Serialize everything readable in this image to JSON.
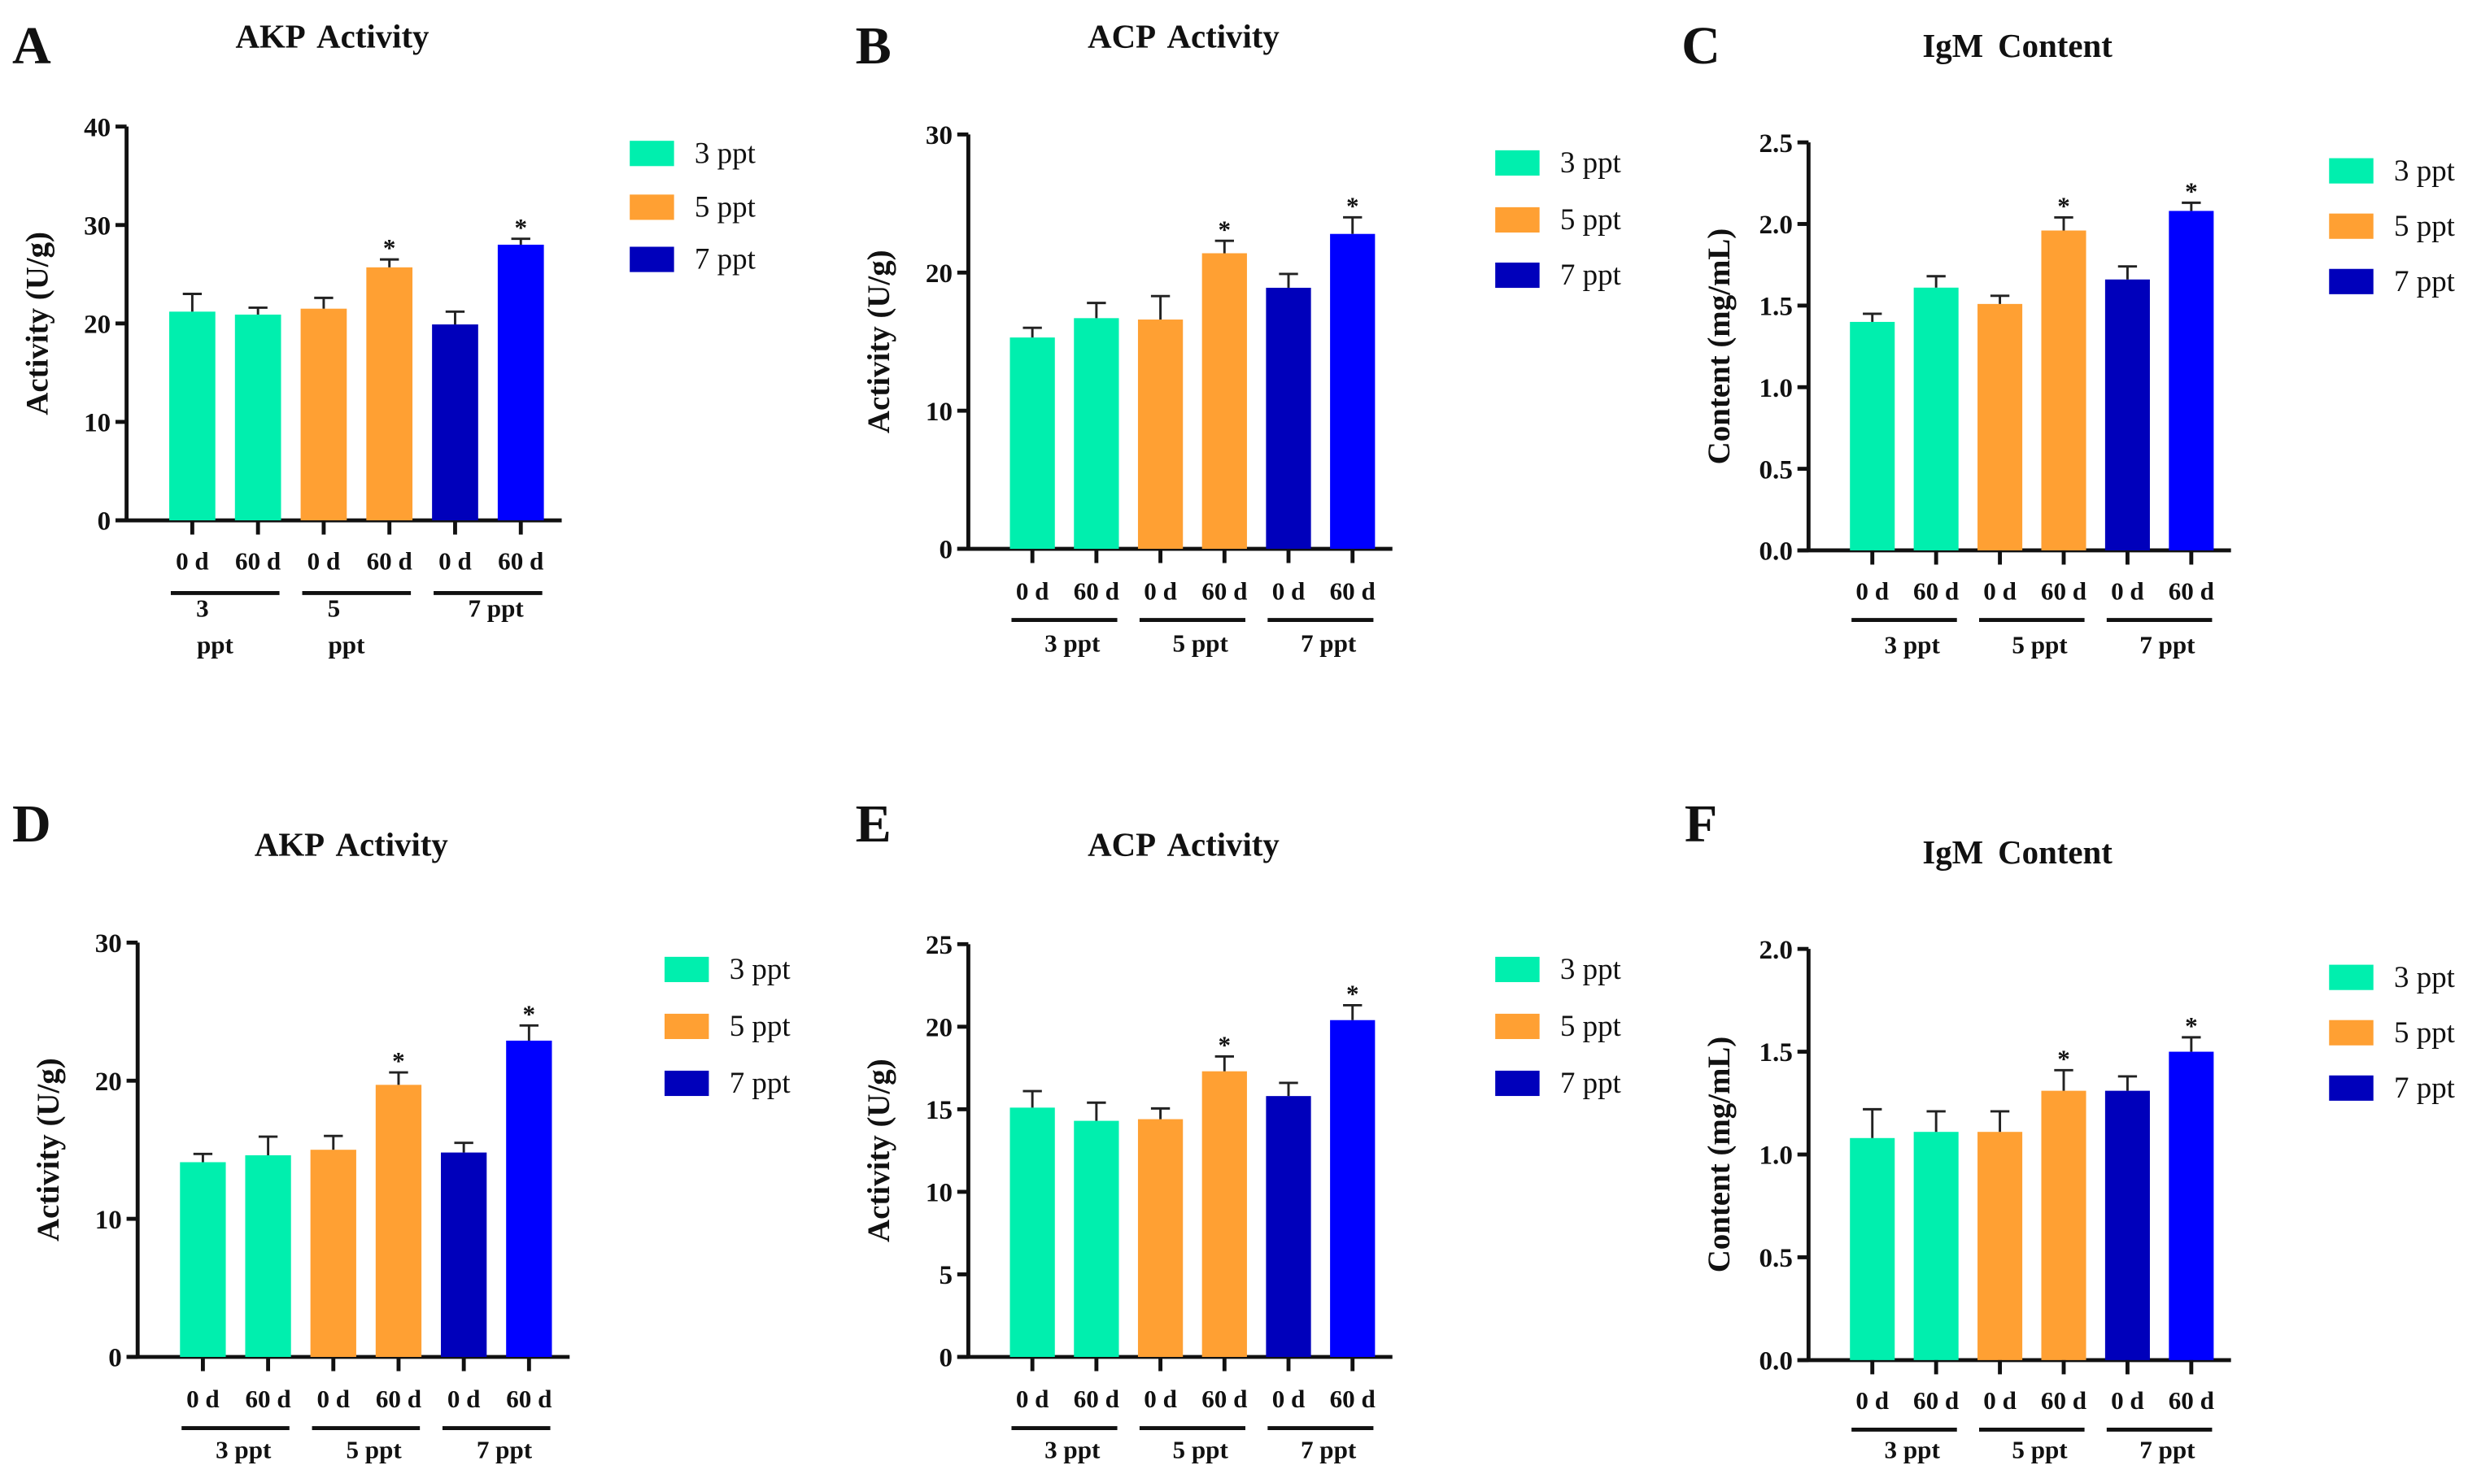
{
  "colors": {
    "teal": "#00EFAE",
    "orange": "#FFA033",
    "dark_blue": "#0000BB",
    "blue": "#0000FF",
    "axis": "#111111"
  },
  "legend": [
    {
      "label": "3 ppt",
      "color": "#00EFAE"
    },
    {
      "label": "5 ppt",
      "color": "#FFA033"
    },
    {
      "label": "7 ppt",
      "color": "#0000BB"
    }
  ],
  "chart_data": [
    {
      "panel": "A",
      "type": "bar",
      "title": "AKP Activity",
      "ylabel": "Activity (U/g)",
      "ylim": [
        0,
        40
      ],
      "yticks": [
        "0",
        "10",
        "20",
        "30",
        "40"
      ],
      "ytick_values": [
        0,
        10,
        20,
        30,
        40
      ],
      "categories": [
        "0 d",
        "60 d",
        "0 d",
        "60 d",
        "0 d",
        "60 d"
      ],
      "groups": [
        {
          "lines": [
            "3",
            "ppt"
          ]
        },
        {
          "lines": [
            "5",
            "ppt"
          ]
        },
        {
          "lines": [
            "7 ppt"
          ]
        }
      ],
      "values": [
        21.2,
        20.9,
        21.5,
        25.7,
        19.9,
        28.0
      ],
      "errors": [
        1.8,
        0.7,
        1.1,
        0.8,
        1.3,
        0.6
      ],
      "significance": [
        "",
        "",
        "",
        "*",
        "",
        "*"
      ]
    },
    {
      "panel": "B",
      "type": "bar",
      "title": "ACP Activity",
      "ylabel": "Activity (U/g)",
      "ylim": [
        0,
        30
      ],
      "yticks": [
        "0",
        "10",
        "20",
        "30"
      ],
      "ytick_values": [
        0,
        10,
        20,
        30
      ],
      "categories": [
        "0 d",
        "60 d",
        "0 d",
        "60 d",
        "0 d",
        "60 d"
      ],
      "groups": [
        {
          "lines": [
            "3 ppt"
          ]
        },
        {
          "lines": [
            "5 ppt"
          ]
        },
        {
          "lines": [
            "7 ppt"
          ]
        }
      ],
      "values": [
        15.3,
        16.7,
        16.6,
        21.4,
        18.9,
        22.8
      ],
      "errors": [
        0.7,
        1.1,
        1.7,
        0.9,
        1.0,
        1.2
      ],
      "significance": [
        "",
        "",
        "",
        "*",
        "",
        "*"
      ]
    },
    {
      "panel": "C",
      "type": "bar",
      "title": "IgM Content",
      "ylabel": "Content (mg/mL)",
      "ylim": [
        0,
        2.5
      ],
      "yticks": [
        "0.0",
        "0.5",
        "1.0",
        "1.5",
        "2.0",
        "2.5"
      ],
      "ytick_values": [
        0,
        0.5,
        1,
        1.5,
        2,
        2.5
      ],
      "categories": [
        "0 d",
        "60 d",
        "0 d",
        "60 d",
        "0 d",
        "60 d"
      ],
      "groups": [
        {
          "lines": [
            "3 ppt"
          ]
        },
        {
          "lines": [
            "5 ppt"
          ]
        },
        {
          "lines": [
            "7 ppt"
          ]
        }
      ],
      "values": [
        1.4,
        1.61,
        1.51,
        1.96,
        1.66,
        2.08
      ],
      "errors": [
        0.05,
        0.07,
        0.05,
        0.08,
        0.08,
        0.05
      ],
      "significance": [
        "",
        "",
        "",
        "*",
        "",
        "*"
      ]
    },
    {
      "panel": "D",
      "type": "bar",
      "title": "AKP Activity",
      "ylabel": "Activity (U/g)",
      "ylim": [
        0,
        30
      ],
      "yticks": [
        "0",
        "10",
        "20",
        "30"
      ],
      "ytick_values": [
        0,
        10,
        20,
        30
      ],
      "categories": [
        "0 d",
        "60 d",
        "0 d",
        "60 d",
        "0 d",
        "60 d"
      ],
      "groups": [
        {
          "lines": [
            "3 ppt"
          ]
        },
        {
          "lines": [
            "5 ppt"
          ]
        },
        {
          "lines": [
            "7 ppt"
          ]
        }
      ],
      "values": [
        14.1,
        14.6,
        15.0,
        19.7,
        14.8,
        22.9
      ],
      "errors": [
        0.6,
        1.35,
        1.0,
        0.9,
        0.7,
        1.1
      ],
      "significance": [
        "",
        "",
        "",
        "*",
        "",
        "*"
      ]
    },
    {
      "panel": "E",
      "type": "bar",
      "title": "ACP Activity",
      "ylabel": "Activity (U/g)",
      "ylim": [
        0,
        25
      ],
      "yticks": [
        "0",
        "5",
        "10",
        "15",
        "20",
        "25"
      ],
      "ytick_values": [
        0,
        5,
        10,
        15,
        20,
        25
      ],
      "categories": [
        "0 d",
        "60 d",
        "0 d",
        "60 d",
        "0 d",
        "60 d"
      ],
      "groups": [
        {
          "lines": [
            "3 ppt"
          ]
        },
        {
          "lines": [
            "5 ppt"
          ]
        },
        {
          "lines": [
            "7 ppt"
          ]
        }
      ],
      "values": [
        15.1,
        14.3,
        14.4,
        17.3,
        15.8,
        20.4
      ],
      "errors": [
        1.0,
        1.1,
        0.65,
        0.9,
        0.8,
        0.9
      ],
      "significance": [
        "",
        "",
        "",
        "*",
        "",
        "*"
      ]
    },
    {
      "panel": "F",
      "type": "bar",
      "title": "IgM Content",
      "ylabel": "Content (mg/mL)",
      "ylim": [
        0,
        2.0
      ],
      "yticks": [
        "0.0",
        "0.5",
        "1.0",
        "1.5",
        "2.0"
      ],
      "ytick_values": [
        0,
        0.5,
        1,
        1.5,
        2
      ],
      "categories": [
        "0 d",
        "60 d",
        "0 d",
        "60 d",
        "0 d",
        "60 d"
      ],
      "groups": [
        {
          "lines": [
            "3 ppt"
          ]
        },
        {
          "lines": [
            "5 ppt"
          ]
        },
        {
          "lines": [
            "7 ppt"
          ]
        }
      ],
      "values": [
        1.08,
        1.11,
        1.11,
        1.31,
        1.31,
        1.5
      ],
      "errors": [
        0.14,
        0.1,
        0.1,
        0.1,
        0.07,
        0.07
      ],
      "significance": [
        "",
        "",
        "",
        "*",
        "",
        "*"
      ]
    }
  ]
}
